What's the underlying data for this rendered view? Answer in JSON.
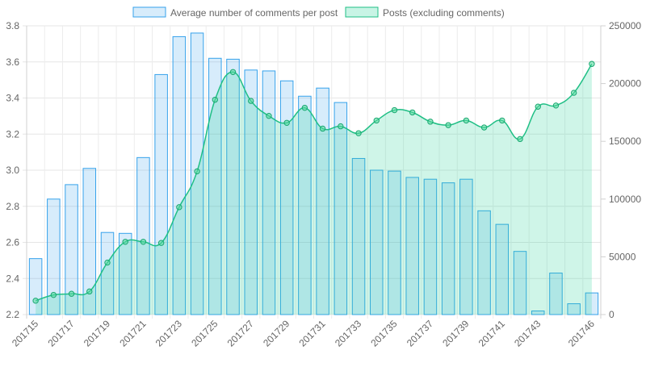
{
  "chart_data": {
    "type": "bar",
    "categories": [
      "201715",
      "201716",
      "201717",
      "201718",
      "201719",
      "201720",
      "201721",
      "201722",
      "201723",
      "201724",
      "201725",
      "201726",
      "201727",
      "201728",
      "201729",
      "201730",
      "201731",
      "201732",
      "201733",
      "201734",
      "201735",
      "201736",
      "201737",
      "201738",
      "201739",
      "201740",
      "201741",
      "201742",
      "201743",
      "201744",
      "201745",
      "201746"
    ],
    "x_tick_labels": [
      "201715",
      "201717",
      "201719",
      "201721",
      "201723",
      "201725",
      "201727",
      "201729",
      "201731",
      "201733",
      "201735",
      "201737",
      "201739",
      "201741",
      "201743",
      "201746"
    ],
    "series": [
      {
        "name": "Average number of comments per post",
        "type": "bar",
        "axis": "left",
        "values": [
          2.51,
          2.84,
          2.92,
          3.01,
          2.655,
          2.65,
          3.07,
          3.53,
          3.74,
          3.76,
          3.62,
          3.615,
          3.555,
          3.55,
          3.495,
          3.41,
          3.455,
          3.375,
          3.065,
          3.0,
          2.995,
          2.96,
          2.95,
          2.93,
          2.95,
          2.775,
          2.7,
          2.55,
          2.22,
          2.43,
          2.26,
          2.32
        ]
      },
      {
        "name": "Posts (excluding comments)",
        "type": "area",
        "axis": "right",
        "values": [
          12000,
          17000,
          18000,
          20000,
          45000,
          63000,
          63000,
          62000,
          93000,
          124000,
          186000,
          210000,
          185000,
          172000,
          166000,
          179000,
          161000,
          163000,
          157000,
          168000,
          177000,
          175000,
          167000,
          164000,
          168000,
          162000,
          168000,
          152000,
          180000,
          181000,
          192000,
          217000
        ]
      }
    ],
    "y_left": {
      "range": [
        2.2,
        3.8
      ],
      "ticks": [
        "2.2",
        "2.4",
        "2.6",
        "2.8",
        "3.0",
        "3.2",
        "3.4",
        "3.6",
        "3.8"
      ]
    },
    "y_right": {
      "range": [
        0,
        250000
      ],
      "ticks": [
        "0",
        "50000",
        "100000",
        "150000",
        "200000",
        "250000"
      ]
    },
    "grid": true,
    "legend_position": "top",
    "colors": {
      "bar_fill": "rgba(54,162,235,0.2)",
      "bar_stroke": "#36a2eb",
      "area_fill": "rgba(36,210,150,0.22)",
      "area_stroke": "#1fbf85",
      "point_fill": "#54d89c",
      "point_stroke": "#18a870"
    }
  }
}
